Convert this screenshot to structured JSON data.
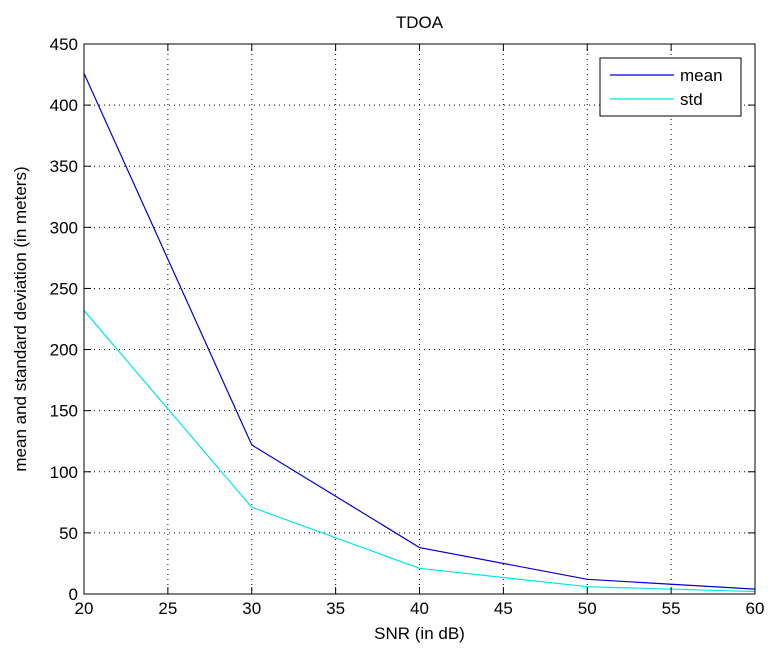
{
  "chart_data": {
    "type": "line",
    "title": "TDOA",
    "xlabel": "SNR (in dB)",
    "ylabel": "mean and standard deviation (in meters)",
    "xlim": [
      20,
      60
    ],
    "ylim": [
      0,
      450
    ],
    "xticks": [
      20,
      25,
      30,
      35,
      40,
      45,
      50,
      55,
      60
    ],
    "yticks": [
      0,
      50,
      100,
      150,
      200,
      250,
      300,
      350,
      400,
      450
    ],
    "grid": true,
    "legend_position": "top-right",
    "x": [
      20,
      30,
      40,
      50,
      60
    ],
    "series": [
      {
        "name": "mean",
        "color": "#0000cc",
        "values": [
          426,
          122,
          38,
          12,
          4
        ]
      },
      {
        "name": "std",
        "color": "#00e5e5",
        "values": [
          232,
          71,
          21,
          6,
          2
        ]
      }
    ]
  }
}
